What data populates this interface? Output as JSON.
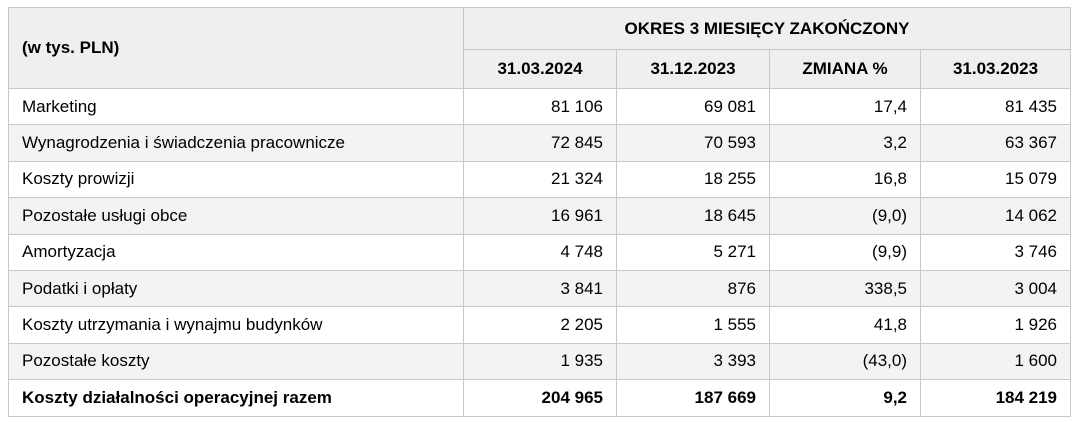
{
  "header": {
    "unit_label": "(w tys. PLN)",
    "period_title": "OKRES 3 MIESIĘCY ZAKOŃCZONY",
    "columns": [
      "31.03.2024",
      "31.12.2023",
      "ZMIANA %",
      "31.03.2023"
    ]
  },
  "rows": [
    {
      "label": "Marketing",
      "v1": "81 106",
      "v2": "69 081",
      "chg": "17,4",
      "v3": "81 435"
    },
    {
      "label": "Wynagrodzenia i świadczenia pracownicze",
      "v1": "72 845",
      "v2": "70 593",
      "chg": "3,2",
      "v3": "63 367"
    },
    {
      "label": "Koszty prowizji",
      "v1": "21 324",
      "v2": "18 255",
      "chg": "16,8",
      "v3": "15 079"
    },
    {
      "label": "Pozostałe usługi obce",
      "v1": "16 961",
      "v2": "18 645",
      "chg": "(9,0)",
      "v3": "14 062"
    },
    {
      "label": "Amortyzacja",
      "v1": "4 748",
      "v2": "5 271",
      "chg": "(9,9)",
      "v3": "3 746"
    },
    {
      "label": "Podatki i opłaty",
      "v1": "3 841",
      "v2": "876",
      "chg": "338,5",
      "v3": "3 004"
    },
    {
      "label": "Koszty utrzymania i wynajmu budynków",
      "v1": "2 205",
      "v2": "1 555",
      "chg": "41,8",
      "v3": "1 926"
    },
    {
      "label": "Pozostałe koszty",
      "v1": "1 935",
      "v2": "3 393",
      "chg": "(43,0)",
      "v3": "1 600"
    }
  ],
  "total": {
    "label": "Koszty działalności operacyjnej razem",
    "v1": "204 965",
    "v2": "187 669",
    "chg": "9,2",
    "v3": "184 219"
  }
}
